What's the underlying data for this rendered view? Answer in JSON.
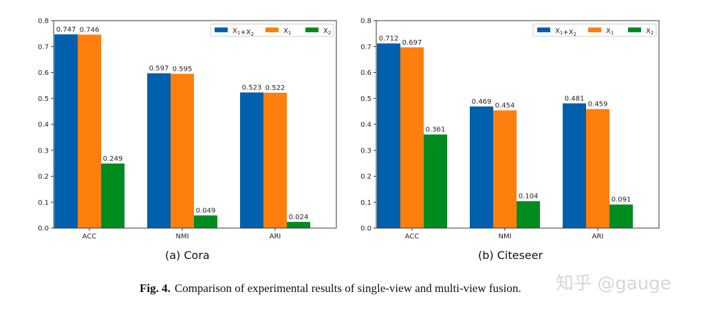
{
  "chart_data": [
    {
      "type": "bar",
      "title": "",
      "subtitle": "(a) Cora",
      "categories": [
        "ACC",
        "NMI",
        "ARI"
      ],
      "series": [
        {
          "name": "X1+X2",
          "color": "#0060ad",
          "values": [
            0.747,
            0.597,
            0.523
          ]
        },
        {
          "name": "X1",
          "color": "#ff7f0e",
          "values": [
            0.746,
            0.595,
            0.522
          ]
        },
        {
          "name": "X2",
          "color": "#008b1f",
          "values": [
            0.249,
            0.049,
            0.024
          ]
        }
      ],
      "ylim": [
        0,
        0.8
      ],
      "yticks": [
        "0.0",
        "0.1",
        "0.2",
        "0.3",
        "0.4",
        "0.5",
        "0.6",
        "0.7",
        "0.8"
      ],
      "data_labels": true,
      "grid": false,
      "legend": "top-right",
      "xlabel": "",
      "ylabel": ""
    },
    {
      "type": "bar",
      "title": "",
      "subtitle": "(b) Citeseer",
      "categories": [
        "ACC",
        "NMI",
        "ARI"
      ],
      "series": [
        {
          "name": "X1+X2",
          "color": "#0060ad",
          "values": [
            0.712,
            0.469,
            0.481
          ]
        },
        {
          "name": "X1",
          "color": "#ff7f0e",
          "values": [
            0.697,
            0.454,
            0.459
          ]
        },
        {
          "name": "X2",
          "color": "#008b1f",
          "values": [
            0.361,
            0.104,
            0.091
          ]
        }
      ],
      "ylim": [
        0,
        0.8
      ],
      "yticks": [
        "0.0",
        "0.1",
        "0.2",
        "0.3",
        "0.4",
        "0.5",
        "0.6",
        "0.7",
        "0.8"
      ],
      "data_labels": true,
      "grid": false,
      "legend": "top-right",
      "xlabel": "",
      "ylabel": ""
    }
  ],
  "caption": {
    "label": "Fig. 4.",
    "text": "Comparison of experimental results of single-view and multi-view fusion."
  },
  "watermark": "知乎 @gauge"
}
